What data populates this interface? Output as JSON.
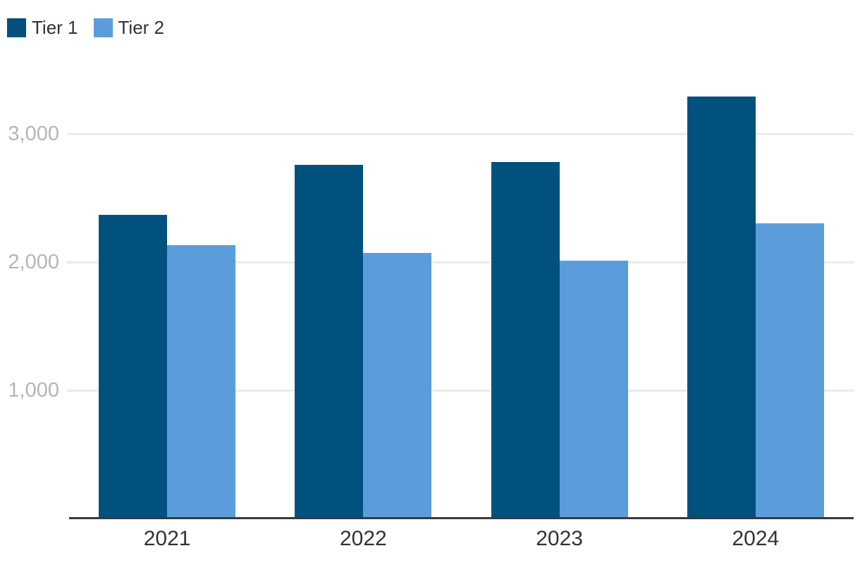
{
  "chart_data": {
    "type": "bar",
    "title": "",
    "xlabel": "",
    "ylabel": "",
    "categories": [
      "2021",
      "2022",
      "2023",
      "2024"
    ],
    "series": [
      {
        "name": "Tier 1",
        "color": "#01517f",
        "values": [
          2370,
          2760,
          2780,
          3290
        ]
      },
      {
        "name": "Tier 2",
        "color": "#5b9dda",
        "values": [
          2130,
          2070,
          2010,
          2300
        ]
      }
    ],
    "ylim": [
      0,
      3500
    ],
    "yticks": [
      1000,
      2000,
      3000
    ],
    "ytick_labels": [
      "1,000",
      "2,000",
      "3,000"
    ],
    "grid": true,
    "legend_position": "top-left",
    "background_color": "#ffffff",
    "axis_line_color": "#3a3a3a",
    "gridline_color": "#ebebeb",
    "xtick_color": "#333333",
    "ytick_color": "#b5b5b5"
  }
}
